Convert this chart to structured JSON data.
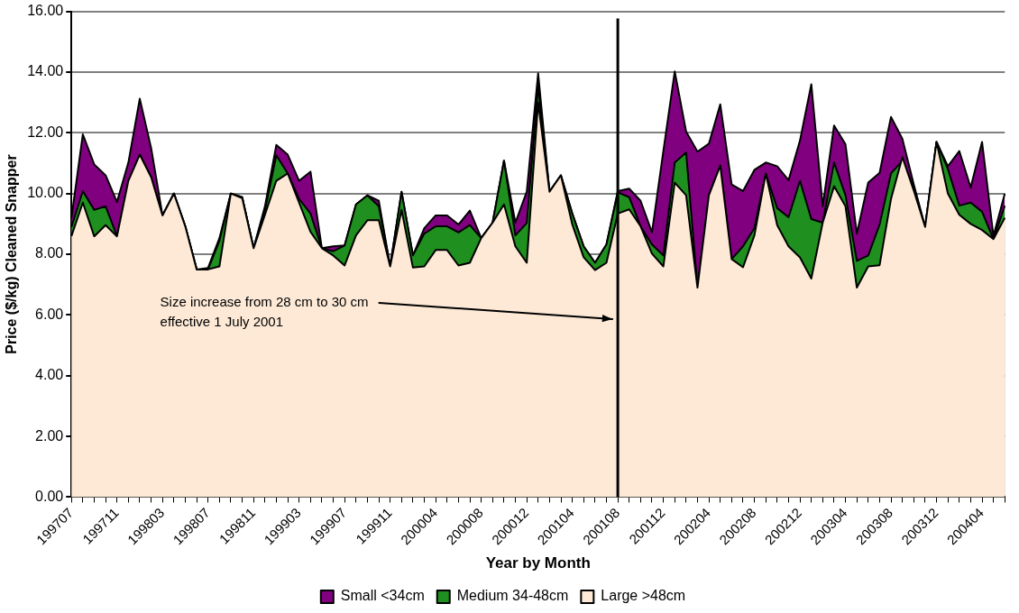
{
  "chart_data": {
    "type": "area",
    "xlabel": "Year by Month",
    "ylabel": "Price ($/kg) Cleaned Snapper",
    "categories": [
      "199707",
      null,
      null,
      null,
      "199711",
      null,
      null,
      null,
      "199803",
      null,
      null,
      null,
      "199807",
      null,
      null,
      null,
      "199811",
      null,
      null,
      null,
      "199903",
      null,
      null,
      null,
      "199907",
      null,
      null,
      null,
      "199911",
      null,
      null,
      null,
      "200004",
      null,
      null,
      null,
      "200008",
      null,
      null,
      null,
      "200012",
      null,
      null,
      null,
      "200104",
      null,
      null,
      null,
      "200108",
      null,
      null,
      null,
      "200112",
      null,
      null,
      null,
      "200204",
      null,
      null,
      null,
      "200208",
      null,
      null,
      null,
      "200212",
      null,
      null,
      null,
      "200304",
      null,
      null,
      null,
      "200308",
      null,
      null,
      null,
      "200312",
      null,
      null,
      null,
      "200404",
      null,
      null
    ],
    "series": [
      {
        "name": "Small <34cm",
        "color": "#800080",
        "values": [
          9.2,
          11.95,
          10.96,
          10.6,
          9.72,
          11.02,
          13.12,
          11.5,
          9.28,
          10.0,
          8.92,
          7.5,
          7.55,
          8.53,
          10.0,
          9.88,
          8.2,
          9.58,
          11.6,
          11.28,
          10.42,
          10.72,
          8.2,
          8.26,
          8.29,
          9.64,
          9.94,
          9.76,
          7.6,
          10.06,
          7.96,
          8.86,
          9.28,
          9.28,
          8.98,
          9.44,
          8.53,
          9.04,
          11.08,
          9.04,
          10.06,
          13.96,
          10.06,
          10.6,
          9.34,
          8.26,
          7.72,
          8.32,
          10.08,
          10.16,
          9.76,
          8.72,
          11.4,
          14.02,
          12.04,
          11.38,
          11.64,
          12.94,
          10.3,
          10.08,
          10.78,
          11.02,
          10.9,
          10.44,
          11.74,
          13.6,
          9.58,
          12.24,
          11.62,
          8.68,
          10.36,
          10.68,
          12.52,
          11.8,
          10.3,
          8.9,
          11.7,
          10.9,
          11.4,
          10.2,
          11.7,
          8.6,
          10.0
        ]
      },
      {
        "name": "Medium 34-48cm",
        "color": "#1f8f1f",
        "values": [
          8.9,
          10.08,
          9.46,
          9.58,
          8.6,
          10.42,
          11.28,
          10.54,
          9.28,
          10.0,
          8.92,
          7.5,
          7.5,
          8.44,
          10.0,
          9.88,
          8.2,
          9.45,
          11.26,
          10.66,
          9.82,
          9.34,
          8.2,
          8.1,
          8.29,
          9.64,
          9.94,
          9.58,
          7.6,
          10.06,
          7.96,
          8.68,
          8.92,
          8.92,
          8.72,
          8.96,
          8.53,
          9.04,
          11.08,
          8.62,
          9.03,
          13.54,
          10.06,
          10.6,
          9.34,
          8.26,
          7.72,
          8.32,
          10.04,
          9.88,
          8.92,
          8.32,
          7.96,
          11.02,
          11.35,
          6.9,
          9.94,
          10.92,
          7.84,
          8.26,
          8.86,
          10.66,
          9.52,
          9.22,
          10.42,
          9.16,
          9.04,
          11.02,
          9.94,
          7.78,
          7.96,
          8.98,
          10.66,
          11.08,
          10.2,
          8.9,
          11.7,
          10.8,
          9.6,
          9.7,
          9.4,
          8.5,
          9.6
        ]
      },
      {
        "name": "Large >48cm",
        "color": "#fde9d6",
        "values": [
          8.6,
          9.7,
          8.59,
          8.96,
          8.59,
          10.42,
          11.28,
          10.54,
          9.28,
          10.0,
          8.92,
          7.5,
          7.5,
          7.6,
          10.0,
          9.85,
          8.2,
          9.3,
          10.42,
          10.66,
          9.7,
          8.74,
          8.2,
          7.96,
          7.63,
          8.62,
          9.12,
          9.12,
          7.6,
          9.46,
          7.56,
          7.6,
          8.14,
          8.14,
          7.63,
          7.72,
          8.53,
          9.04,
          9.64,
          8.26,
          7.72,
          13.0,
          10.06,
          10.6,
          8.98,
          7.9,
          7.48,
          7.72,
          9.34,
          9.48,
          8.92,
          8.02,
          7.6,
          10.36,
          9.94,
          6.9,
          9.94,
          10.92,
          7.84,
          7.57,
          8.62,
          10.66,
          8.96,
          8.26,
          7.9,
          7.2,
          9.04,
          10.24,
          9.58,
          6.9,
          7.6,
          7.64,
          9.82,
          11.2,
          10.1,
          8.9,
          11.7,
          10.0,
          9.3,
          9.0,
          8.8,
          8.5,
          9.2
        ]
      }
    ],
    "ylim": [
      0,
      16
    ],
    "yticks": [
      {
        "value": 0,
        "label": "0.00"
      },
      {
        "value": 2,
        "label": "2.00"
      },
      {
        "value": 4,
        "label": "4.00"
      },
      {
        "value": 6,
        "label": "6.00"
      },
      {
        "value": 8,
        "label": "8.00"
      },
      {
        "value": 10,
        "label": "10.00"
      },
      {
        "value": 12,
        "label": "12.00"
      },
      {
        "value": 14,
        "label": "14.00"
      },
      {
        "value": 16,
        "label": "16.00"
      }
    ],
    "grid": "y",
    "legend": "bottom",
    "ref_lines": [
      {
        "axis": "x",
        "value": "200108",
        "color": "#000000"
      }
    ],
    "annotations": [
      "Size increase from 28 cm to 30 cm\neffective 1 July 2001"
    ]
  }
}
